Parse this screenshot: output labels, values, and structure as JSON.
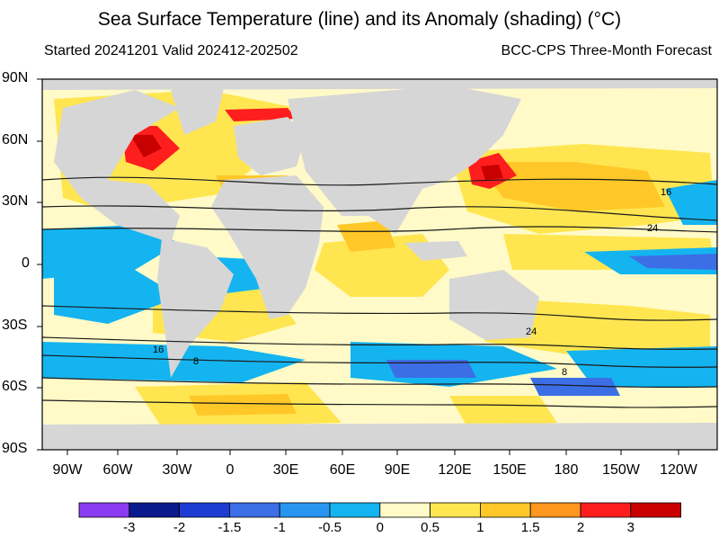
{
  "title": "Sea Surface Temperature (line) and its Anomaly (shading) (°C)",
  "subtitle_left": "Started 20241201  Valid 202412-202502",
  "subtitle_right": "BCC-CPS Three-Month Forecast",
  "lat_labels": [
    "90N",
    "60N",
    "30N",
    "0",
    "30S",
    "60S",
    "90S"
  ],
  "lon_labels": [
    "90W",
    "60W",
    "30W",
    "0",
    "30E",
    "60E",
    "90E",
    "120E",
    "150E",
    "180",
    "150W",
    "120W"
  ],
  "contour_labels": [
    "16",
    "24",
    "24",
    "16",
    "8",
    "8"
  ],
  "colorbar": {
    "labels": [
      "-3",
      "-2",
      "-1.5",
      "-1",
      "-0.5",
      "0",
      "0.5",
      "1",
      "1.5",
      "2",
      "3"
    ],
    "colors": [
      "#8c3cf0",
      "#0a1a8c",
      "#1e3cd2",
      "#3c6ee6",
      "#2896f0",
      "#14b4f0",
      "#fffac8",
      "#ffe650",
      "#ffc828",
      "#ff961e",
      "#ff1e1e",
      "#c80000"
    ]
  },
  "colors": {
    "land": "#d6d6d6",
    "neutral": "#fffac8",
    "contour": "#1a1a1a"
  }
}
